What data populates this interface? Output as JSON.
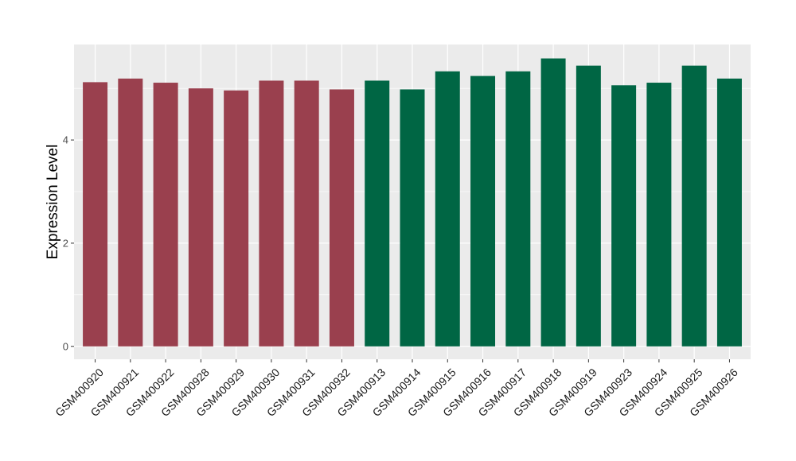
{
  "chart_data": {
    "type": "bar",
    "title": "",
    "xlabel": "",
    "ylabel": "Expression Level",
    "ylim": [
      -0.25,
      5.85
    ],
    "yticks": [
      0,
      2,
      4
    ],
    "grid": true,
    "categories": [
      "GSM400920",
      "GSM400921",
      "GSM400922",
      "GSM400928",
      "GSM400929",
      "GSM400930",
      "GSM400931",
      "GSM400932",
      "GSM400913",
      "GSM400914",
      "GSM400915",
      "GSM400916",
      "GSM400917",
      "GSM400918",
      "GSM400919",
      "GSM400923",
      "GSM400924",
      "GSM400925",
      "GSM400926"
    ],
    "values": [
      5.12,
      5.19,
      5.11,
      5.0,
      4.96,
      5.15,
      5.15,
      4.98,
      5.15,
      4.98,
      5.33,
      5.24,
      5.33,
      5.58,
      5.44,
      5.06,
      5.11,
      5.44,
      5.19
    ],
    "groups": [
      "a",
      "a",
      "a",
      "a",
      "a",
      "a",
      "a",
      "a",
      "b",
      "b",
      "b",
      "b",
      "b",
      "b",
      "b",
      "b",
      "b",
      "b",
      "b"
    ],
    "group_colors": {
      "a": "#9a404e",
      "b": "#006644"
    },
    "panel_background": "#ebebeb",
    "grid_color": "#ffffff"
  }
}
